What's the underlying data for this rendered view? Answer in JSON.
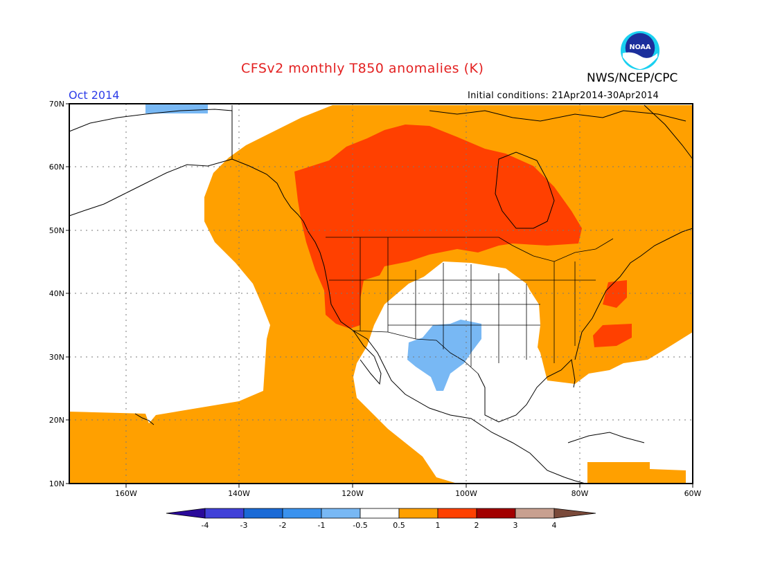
{
  "header": {
    "title": "CFSv2 monthly T850 anomalies (K)",
    "agency": "NWS/NCEP/CPC",
    "period": "Oct 2014",
    "initial_conditions": "Initial conditions: 21Apr2014-30Apr2014",
    "logo_text": "NOAA"
  },
  "map": {
    "projection": "lat-lon",
    "lon_range": [
      -170,
      -60
    ],
    "lat_range": [
      10,
      70
    ],
    "lat_labels": [
      "70N",
      "60N",
      "50N",
      "40N",
      "30N",
      "20N",
      "10N"
    ],
    "lon_labels": [
      "160W",
      "140W",
      "120W",
      "100W",
      "80W",
      "60W"
    ],
    "grid": true
  },
  "legend": {
    "labels": [
      "-4",
      "-3",
      "-2",
      "-1",
      "-0.5",
      "0.5",
      "1",
      "2",
      "3",
      "4"
    ],
    "colors": {
      "below_-4": "#2a0a9a",
      "-4_-3": "#4040d8",
      "-3_-2": "#1a6ad6",
      "-2_-1": "#3a92ee",
      "-1_-0.5": "#78b8f4",
      "-0.5_0.5": "#ffffff",
      "0.5_1": "#ffa000",
      "1_2": "#ff4000",
      "2_3": "#a20000",
      "3_4": "#c8a090",
      "above_4": "#7a4a3a"
    }
  }
}
